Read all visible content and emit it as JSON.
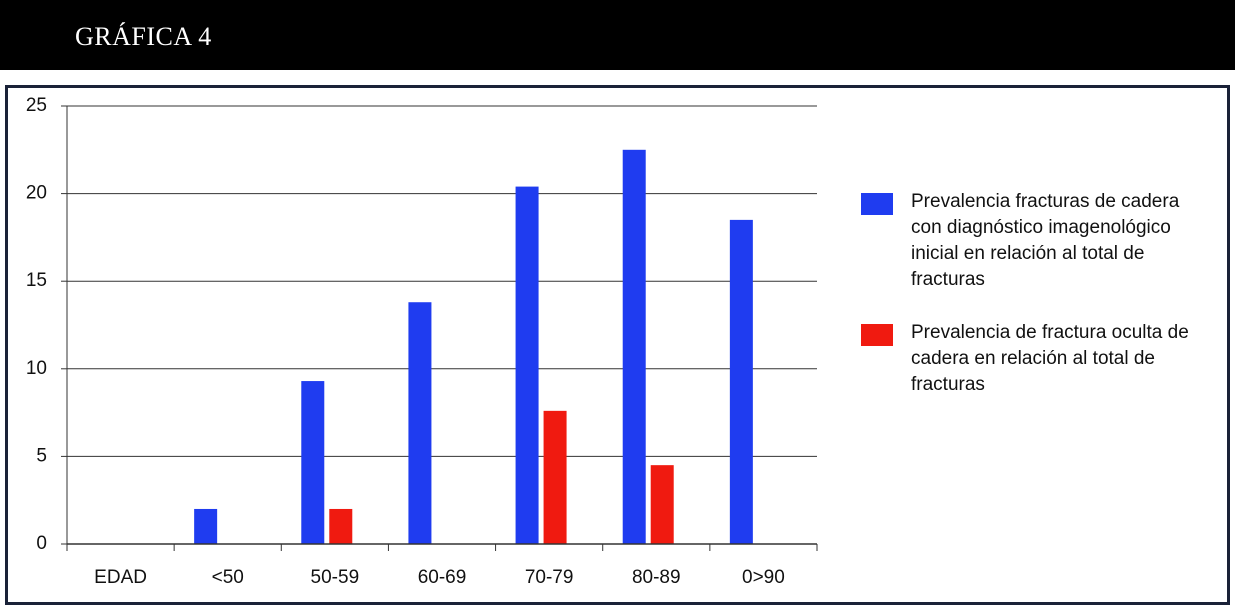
{
  "chart_data": {
    "type": "bar",
    "title": "GRÁFICA 4",
    "categories": [
      "EDAD",
      "<50",
      "50-59",
      "60-69",
      "70-79",
      "80-89",
      "0>90"
    ],
    "series": [
      {
        "name": "Prevalencia fracturas de cadera con diagnóstico imagenológico inicial en relación al total de fracturas",
        "color": "#1f3cf0",
        "values": [
          null,
          2,
          9.3,
          13.8,
          20.4,
          22.5,
          18.5
        ]
      },
      {
        "name": "Prevalencia de fractura oculta de cadera en relación al total de fracturas",
        "color": "#f01a10",
        "values": [
          null,
          null,
          2,
          null,
          7.6,
          4.5,
          null
        ]
      }
    ],
    "ylim": [
      0,
      25
    ],
    "yticks": [
      0,
      5,
      10,
      15,
      20,
      25
    ],
    "grid": true,
    "legend": "right"
  }
}
